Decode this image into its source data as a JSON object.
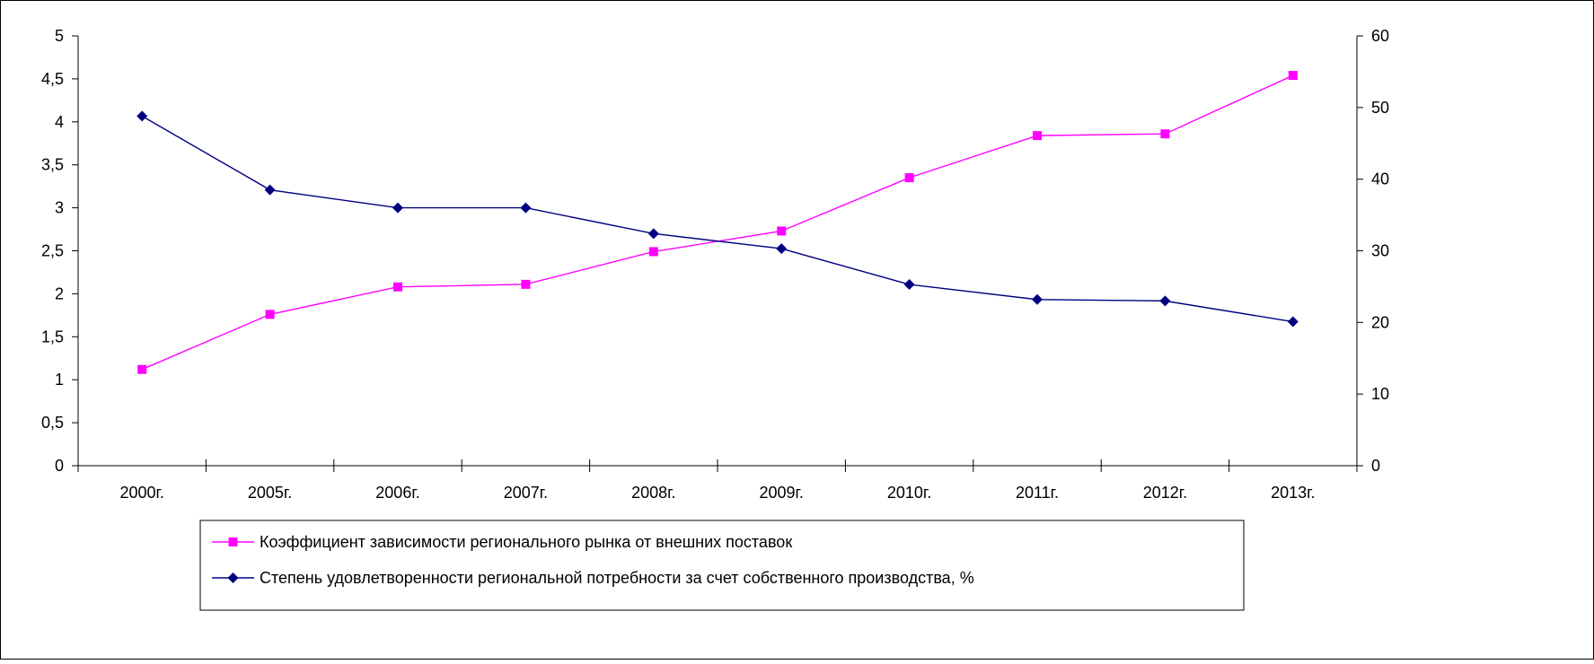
{
  "chart_data": {
    "type": "line",
    "categories": [
      "2000г.",
      "2005г.",
      "2006г.",
      "2007г.",
      "2008г.",
      "2009г.",
      "2010г.",
      "2011г.",
      "2012г.",
      "2013г."
    ],
    "y_left": {
      "range": [
        0,
        5
      ],
      "ticks": [
        0,
        0.5,
        1,
        1.5,
        2,
        2.5,
        3,
        3.5,
        4,
        4.5,
        5
      ],
      "tick_labels": [
        "0",
        "0,5",
        "1",
        "1,5",
        "2",
        "2,5",
        "3",
        "3,5",
        "4",
        "4,5",
        "5"
      ]
    },
    "y_right": {
      "range": [
        0,
        60
      ],
      "ticks": [
        0,
        10,
        20,
        30,
        40,
        50,
        60
      ],
      "tick_labels": [
        "0",
        "10",
        "20",
        "30",
        "40",
        "50",
        "60"
      ]
    },
    "series": [
      {
        "name": "Коэффициент зависимости регионального рынка от внешних поставок",
        "axis": "left",
        "color": "#ff00ff",
        "marker": "square",
        "values": [
          1.12,
          1.76,
          2.08,
          2.11,
          2.49,
          2.73,
          3.35,
          3.84,
          3.86,
          4.54
        ]
      },
      {
        "name": "Степень удовлетворенности региональной потребности за счет собственного производства, %",
        "axis": "right",
        "color": "#000080",
        "marker": "diamond",
        "values": [
          48.8,
          38.5,
          36.0,
          36.0,
          32.4,
          30.3,
          25.3,
          23.2,
          23.0,
          20.1
        ]
      }
    ],
    "grid": false,
    "legend_position": "bottom"
  }
}
